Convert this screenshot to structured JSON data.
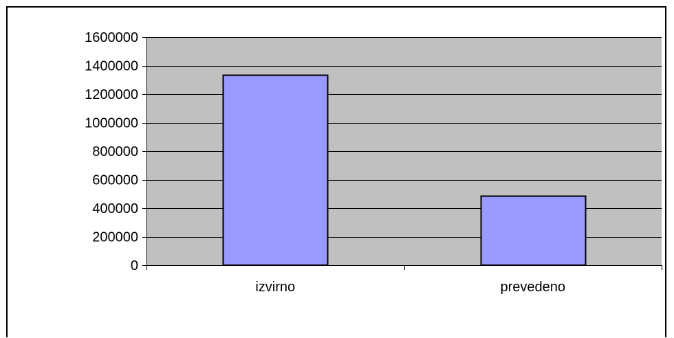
{
  "chart_data": {
    "type": "bar",
    "categories": [
      "izvirno",
      "prevedeno"
    ],
    "values": [
      1335000,
      485000
    ],
    "ylim": [
      0,
      1600000
    ],
    "yticks": [
      0,
      200000,
      400000,
      600000,
      800000,
      1000000,
      1200000,
      1400000,
      1600000
    ],
    "ytick_labels": [
      "0",
      "200000",
      "400000",
      "600000",
      "800000",
      "1000000",
      "1200000",
      "1400000",
      "1600000"
    ],
    "grid": true,
    "legend": "none",
    "colors": {
      "plot_background": "#c0c0c0",
      "bar_fill": "#9999ff",
      "bar_stroke": "#000000",
      "gridline": "#000000",
      "frame": "#000000"
    }
  }
}
